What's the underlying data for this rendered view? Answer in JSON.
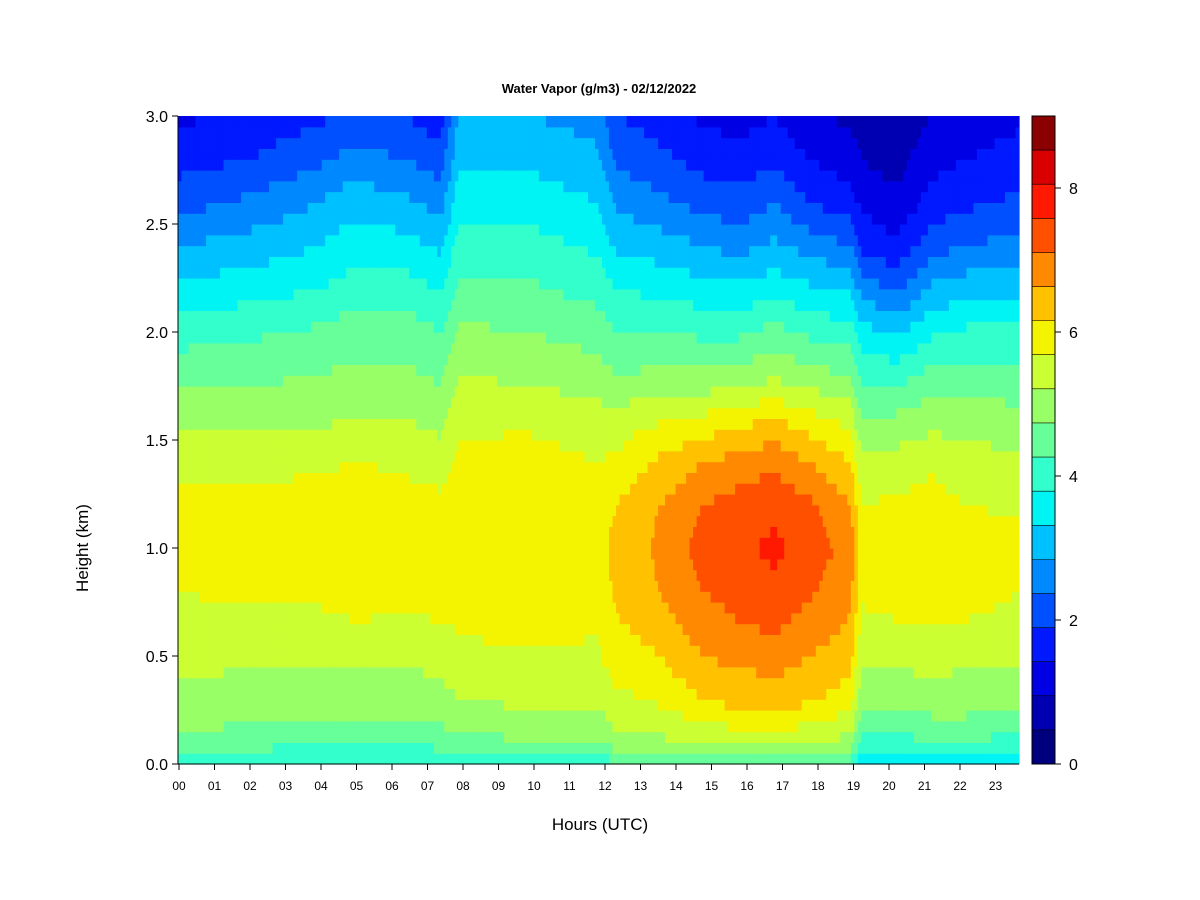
{
  "chart_data": {
    "type": "heatmap",
    "title": "Water Vapor (g/m3) - 02/12/2022",
    "xlabel": "Hours (UTC)",
    "ylabel": "Height (km)",
    "xlim": [
      0,
      24
    ],
    "ylim": [
      0,
      3
    ],
    "x_ticks": [
      "00",
      "01",
      "02",
      "03",
      "04",
      "05",
      "06",
      "07",
      "08",
      "09",
      "10",
      "11",
      "12",
      "13",
      "14",
      "15",
      "16",
      "17",
      "18",
      "19",
      "20",
      "21",
      "22",
      "23"
    ],
    "y_ticks": [
      "0.0",
      "0.5",
      "1.0",
      "1.5",
      "2.0",
      "2.5",
      "3.0"
    ],
    "colorbar": {
      "min": 0,
      "max": 9,
      "step": 0.5,
      "tick_values": [
        0,
        2,
        4,
        6,
        8
      ],
      "tick_labels": [
        "0",
        "2",
        "4",
        "6",
        "8"
      ],
      "colors": [
        "#00007F",
        "#0000B2",
        "#0000E5",
        "#0019FF",
        "#0050FF",
        "#0089FF",
        "#00C1FF",
        "#00F4F4",
        "#33FFCC",
        "#66FF99",
        "#99FF66",
        "#CCFF33",
        "#F4F400",
        "#FFC100",
        "#FF8900",
        "#FF5000",
        "#FF1900",
        "#D80000",
        "#8B0000"
      ]
    },
    "profile_heights_km": [
      0.0,
      0.05,
      0.15,
      0.3,
      0.45,
      0.6,
      0.8,
      1.0,
      1.2,
      1.4,
      1.6,
      1.8,
      2.0,
      2.2,
      2.4,
      2.6,
      2.8,
      3.0
    ],
    "profiles": [
      {
        "hour": 0.0,
        "values": [
          4.3,
          4.6,
          5.0,
          5.4,
          5.6,
          5.8,
          6.0,
          6.3,
          6.1,
          5.9,
          5.4,
          4.8,
          4.3,
          3.6,
          3.0,
          2.3,
          1.8,
          1.4
        ]
      },
      {
        "hour": 2.0,
        "values": [
          4.1,
          4.4,
          4.9,
          5.3,
          5.5,
          5.8,
          6.1,
          6.4,
          6.1,
          5.9,
          5.3,
          4.9,
          4.4,
          3.8,
          3.2,
          2.6,
          2.0,
          1.6
        ]
      },
      {
        "hour": 4.0,
        "values": [
          4.0,
          4.3,
          4.9,
          5.2,
          5.5,
          5.8,
          6.1,
          6.4,
          6.2,
          5.9,
          5.4,
          5.0,
          4.6,
          4.0,
          3.5,
          3.0,
          2.4,
          1.9
        ]
      },
      {
        "hour": 5.0,
        "values": [
          4.0,
          4.3,
          4.9,
          5.3,
          5.5,
          5.9,
          6.2,
          6.5,
          6.4,
          6.0,
          5.5,
          5.1,
          4.8,
          4.2,
          3.8,
          3.3,
          2.7,
          2.1
        ]
      },
      {
        "hour": 6.5,
        "values": [
          3.9,
          4.3,
          4.8,
          5.2,
          5.5,
          5.9,
          6.1,
          6.4,
          6.2,
          5.9,
          5.5,
          5.1,
          4.8,
          4.2,
          3.7,
          3.1,
          2.5,
          2.0
        ]
      },
      {
        "hour": 7.5,
        "values": [
          3.9,
          4.4,
          4.9,
          5.3,
          5.6,
          5.9,
          6.2,
          6.3,
          6.1,
          5.8,
          5.3,
          4.9,
          4.5,
          4.0,
          3.4,
          2.8,
          2.2,
          1.7
        ]
      },
      {
        "hour": 8.0,
        "values": [
          4.0,
          4.5,
          5.1,
          5.5,
          5.8,
          6.0,
          6.2,
          6.3,
          6.3,
          6.1,
          5.9,
          5.5,
          5.1,
          4.6,
          4.2,
          3.8,
          3.4,
          3.0
        ]
      },
      {
        "hour": 10.0,
        "values": [
          4.1,
          4.5,
          5.2,
          5.6,
          5.9,
          6.1,
          6.3,
          6.5,
          6.4,
          6.2,
          5.9,
          5.4,
          5.0,
          4.6,
          4.2,
          3.8,
          3.4,
          3.0
        ]
      },
      {
        "hour": 12.0,
        "values": [
          4.2,
          4.6,
          5.2,
          5.6,
          5.9,
          6.0,
          6.2,
          6.3,
          6.2,
          6.0,
          5.7,
          5.2,
          4.8,
          4.3,
          3.9,
          3.5,
          3.1,
          2.8
        ]
      },
      {
        "hour": 12.5,
        "values": [
          4.3,
          4.9,
          5.5,
          5.9,
          6.2,
          6.4,
          6.6,
          6.7,
          6.5,
          6.1,
          5.7,
          5.0,
          4.5,
          4.0,
          3.4,
          2.9,
          2.4,
          2.0
        ]
      },
      {
        "hour": 13.5,
        "values": [
          4.4,
          5.0,
          5.6,
          6.0,
          6.3,
          6.6,
          6.9,
          7.0,
          6.9,
          6.5,
          5.9,
          5.1,
          4.5,
          3.9,
          3.3,
          2.7,
          2.2,
          1.8
        ]
      },
      {
        "hour": 15.0,
        "values": [
          4.5,
          5.1,
          5.8,
          6.5,
          6.9,
          7.2,
          7.5,
          7.7,
          7.5,
          7.0,
          6.1,
          5.1,
          4.4,
          3.7,
          3.0,
          2.3,
          1.8,
          1.4
        ]
      },
      {
        "hour": 16.0,
        "values": [
          4.5,
          5.2,
          5.9,
          6.7,
          7.0,
          7.4,
          7.7,
          7.9,
          7.7,
          7.2,
          6.3,
          5.2,
          4.4,
          3.6,
          2.8,
          2.2,
          1.7,
          1.3
        ]
      },
      {
        "hour": 17.0,
        "values": [
          4.5,
          5.2,
          6.0,
          6.8,
          7.1,
          7.5,
          7.9,
          8.1,
          7.9,
          7.4,
          6.5,
          5.4,
          4.7,
          3.8,
          3.1,
          2.5,
          1.9,
          1.5
        ]
      },
      {
        "hour": 18.0,
        "values": [
          4.4,
          5.1,
          5.8,
          6.6,
          6.9,
          7.2,
          7.6,
          7.8,
          7.6,
          7.0,
          6.2,
          5.2,
          4.4,
          3.6,
          2.8,
          2.0,
          1.5,
          1.1
        ]
      },
      {
        "hour": 19.2,
        "values": [
          4.3,
          5.0,
          5.6,
          6.2,
          6.6,
          6.9,
          7.1,
          7.3,
          7.0,
          6.5,
          5.8,
          5.0,
          4.2,
          3.4,
          2.5,
          1.7,
          1.2,
          0.9
        ]
      },
      {
        "hour": 19.5,
        "values": [
          3.5,
          4.0,
          4.6,
          5.2,
          5.5,
          5.8,
          6.1,
          6.3,
          6.0,
          5.6,
          5.0,
          4.4,
          3.7,
          2.8,
          1.9,
          1.4,
          1.0,
          0.8
        ]
      },
      {
        "hour": 20.5,
        "values": [
          3.5,
          4.0,
          4.6,
          5.2,
          5.5,
          5.9,
          6.2,
          6.4,
          6.1,
          5.7,
          5.1,
          4.3,
          3.4,
          2.4,
          1.6,
          1.1,
          0.8,
          0.7
        ]
      },
      {
        "hour": 21.5,
        "values": [
          3.6,
          4.1,
          4.7,
          5.3,
          5.6,
          5.9,
          6.3,
          6.5,
          6.2,
          5.9,
          5.3,
          4.7,
          3.9,
          3.1,
          2.3,
          1.7,
          1.3,
          1.0
        ]
      },
      {
        "hour": 22.5,
        "values": [
          3.6,
          4.1,
          4.7,
          5.3,
          5.5,
          5.9,
          6.2,
          6.3,
          6.0,
          5.7,
          5.3,
          4.7,
          4.1,
          3.3,
          2.5,
          1.9,
          1.5,
          1.2
        ]
      },
      {
        "hour": 24.0,
        "values": [
          3.6,
          4.0,
          4.6,
          5.2,
          5.5,
          5.8,
          6.0,
          6.2,
          5.9,
          5.6,
          5.2,
          4.6,
          4.1,
          3.4,
          2.7,
          2.1,
          1.7,
          1.4
        ]
      }
    ]
  }
}
